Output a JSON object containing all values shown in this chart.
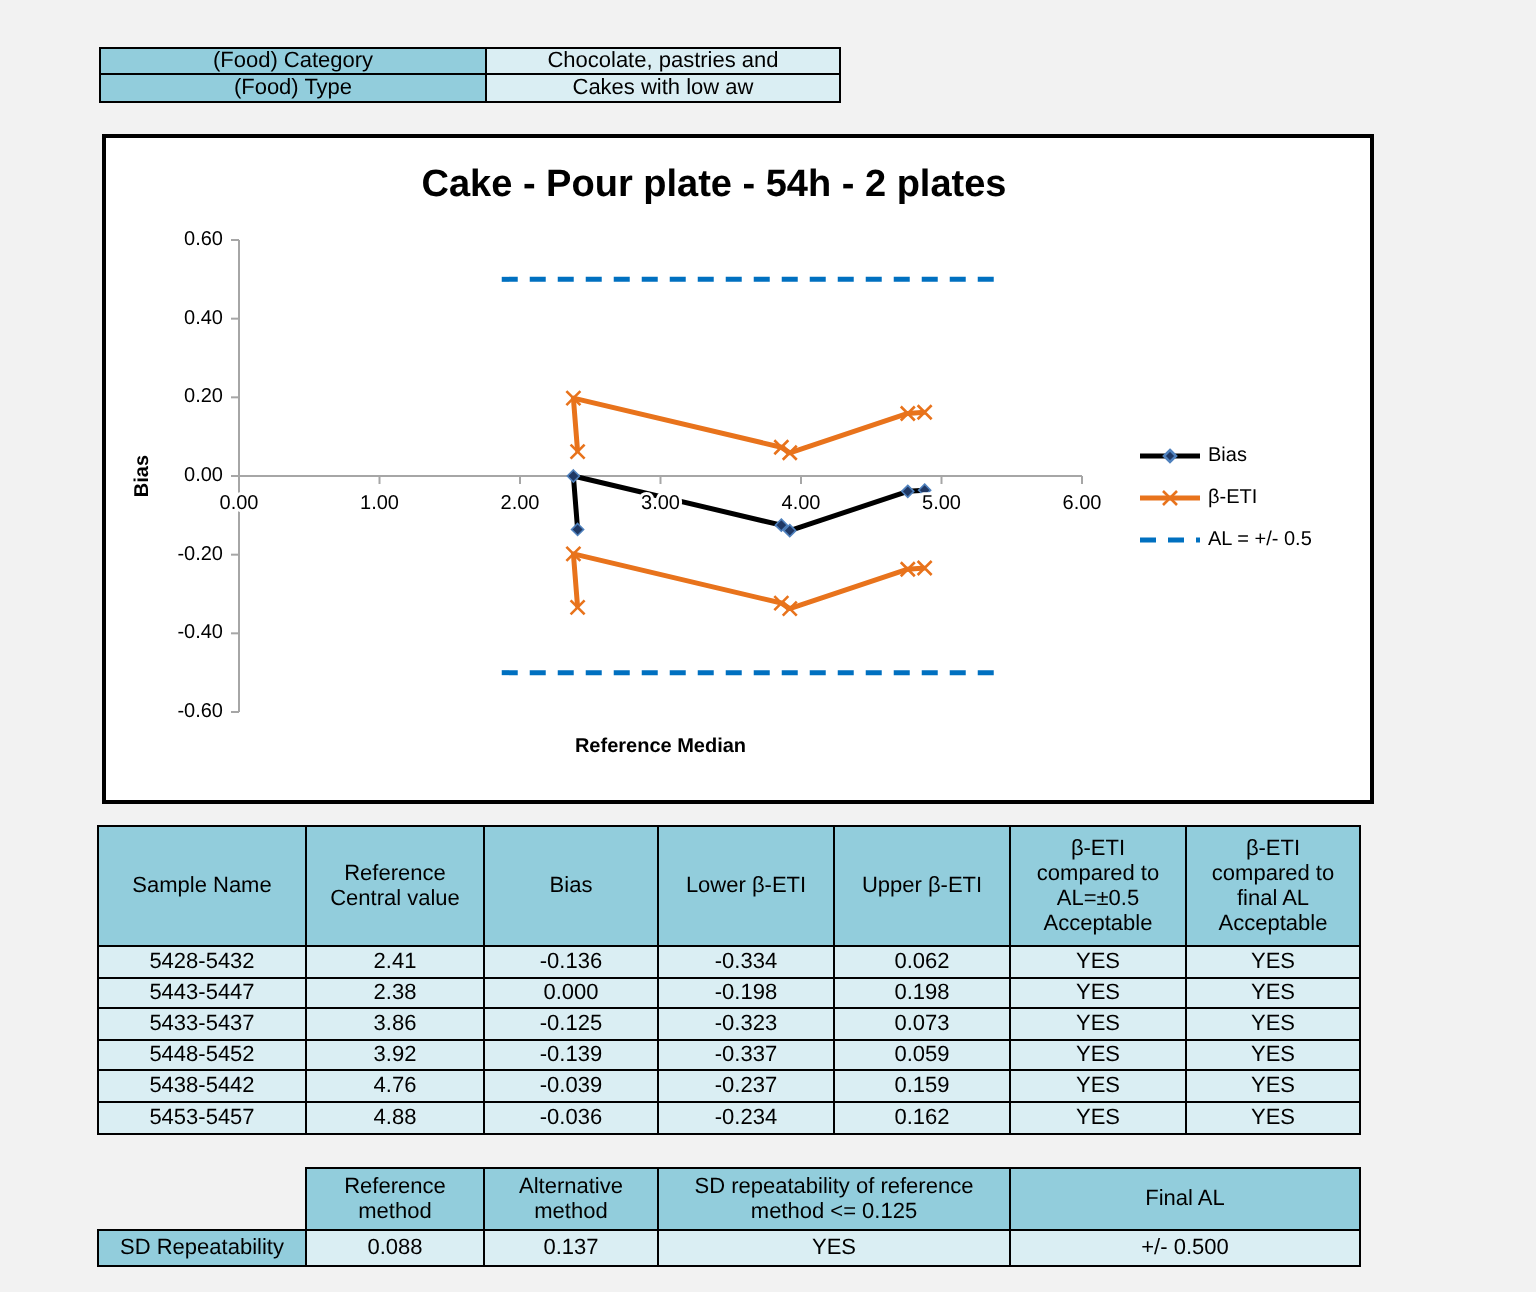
{
  "chart_data": [
    {
      "type": "other",
      "annotations": [
        "(Food) Category",
        "Chocolate, pastries and",
        "(Food) Type",
        "Cakes with low aw"
      ]
    },
    {
      "type": "line",
      "title": "Cake - Pour plate - 54h - 2 plates",
      "xlabel": "Reference Median",
      "ylabel": "Bias",
      "xlim": [
        0,
        6
      ],
      "ylim": [
        -0.6,
        0.6
      ],
      "xticks": [
        {
          "value": 0,
          "label": "0.00"
        },
        {
          "value": 1,
          "label": "1.00"
        },
        {
          "value": 2,
          "label": "2.00"
        },
        {
          "value": 3,
          "label": "3.00"
        },
        {
          "value": 4,
          "label": "4.00"
        },
        {
          "value": 5,
          "label": "5.00"
        },
        {
          "value": 6,
          "label": "6.00"
        }
      ],
      "yticks": [
        {
          "value": -0.6,
          "label": "-0.60"
        },
        {
          "value": -0.4,
          "label": "-0.40"
        },
        {
          "value": -0.2,
          "label": "-0.20"
        },
        {
          "value": 0,
          "label": "0.00"
        },
        {
          "value": 0.2,
          "label": "0.20"
        },
        {
          "value": 0.4,
          "label": "0.40"
        },
        {
          "value": 0.6,
          "label": "0.60"
        }
      ],
      "grid": false,
      "legend": "right",
      "line_style": "solid",
      "series": [
        {
          "name": "Bias",
          "color": "#000000",
          "x": [
            2.41,
            2.38,
            3.86,
            3.92,
            4.76,
            4.88
          ],
          "values": [
            -0.136,
            0,
            -0.125,
            -0.139,
            -0.039,
            -0.036
          ],
          "marker": "diamond"
        },
        {
          "name": "β-ETI",
          "color": "#e8731c",
          "x": [
            2.41,
            2.38,
            3.86,
            3.92,
            4.76,
            4.88
          ],
          "values": [
            0.062,
            0.198,
            0.073,
            0.059,
            0.159,
            0.162
          ],
          "marker": "cross"
        },
        {
          "color": "#e8731c",
          "x": [
            2.41,
            2.38,
            3.86,
            3.92,
            4.76,
            4.88
          ],
          "values": [
            -0.334,
            -0.198,
            -0.323,
            -0.337,
            -0.237,
            -0.234
          ],
          "marker": "cross"
        },
        {
          "name": "AL = +/- 0.5",
          "color": "#0070c0",
          "x": [
            1.87,
            5.4
          ],
          "values": [
            0.5,
            0.5
          ],
          "marker": "none",
          "line_style": "dashed"
        },
        {
          "color": "#0070c0",
          "x": [
            1.87,
            5.4
          ],
          "values": [
            -0.5,
            -0.5
          ],
          "marker": "none",
          "line_style": "dashed"
        }
      ]
    },
    {
      "type": "other",
      "annotations": [
        "Sample Name",
        "Reference\nCentral value",
        "Bias",
        "Lower β-ETI",
        "Upper β-ETI",
        "β-ETI\ncompared to\nAL=±0.5\nAcceptable",
        "β-ETI\ncompared to\nfinal AL\nAcceptable",
        "5428-5432",
        "2.41",
        "-0.136",
        "-0.334",
        "0.062",
        "YES",
        "YES",
        "5443-5447",
        "2.38",
        "0.000",
        "-0.198",
        "0.198",
        "YES",
        "YES",
        "5433-5437",
        "3.86",
        "-0.125",
        "-0.323",
        "0.073",
        "YES",
        "YES",
        "5448-5452",
        "3.92",
        "-0.139",
        "-0.337",
        "0.059",
        "YES",
        "YES",
        "5438-5442",
        "4.76",
        "-0.039",
        "-0.237",
        "0.159",
        "YES",
        "YES",
        "5453-5457",
        "4.88",
        "-0.036",
        "-0.234",
        "0.162",
        "YES",
        "YES"
      ]
    },
    {
      "type": "other",
      "annotations": [
        "Reference\nmethod",
        "Alternative\nmethod",
        "SD repeatability of reference\nmethod <= 0.125",
        "Final AL",
        "SD Repeatability",
        "0.088",
        "0.137",
        "YES",
        "+/- 0.500"
      ]
    }
  ]
}
